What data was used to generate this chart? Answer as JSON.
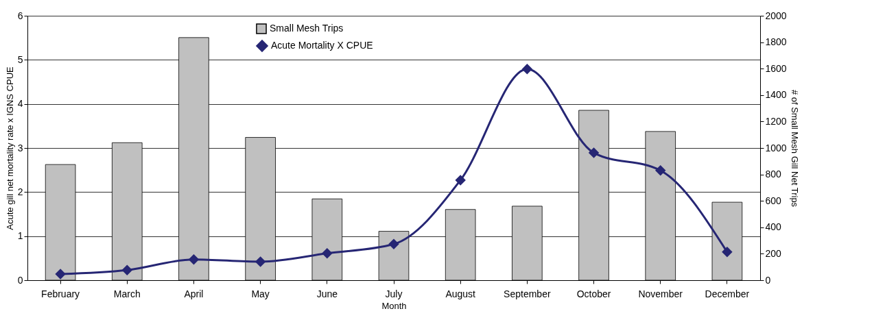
{
  "chart_data": {
    "type": "bar",
    "xlabel": "Month",
    "ylabel": "Acute gill net mortality rate x IGNS CPUE",
    "y2label": "# of Small Mesh Gill Net Trips",
    "categories": [
      "February",
      "March",
      "April",
      "May",
      "June",
      "July",
      "August",
      "September",
      "October",
      "November",
      "December"
    ],
    "series": [
      {
        "name": "Small Mesh Trips",
        "axis": "y2",
        "color": "#c0c0c0",
        "values": [
          875,
          1040,
          1835,
          1080,
          615,
          370,
          535,
          560,
          1285,
          1125,
          590
        ]
      },
      {
        "name": "Acute Mortality X CPUE",
        "type": "line",
        "color": "#262674",
        "marker": "diamond",
        "values": [
          0.14,
          0.23,
          0.47,
          0.42,
          0.61,
          0.82,
          2.27,
          4.79,
          2.89,
          2.49,
          0.64
        ]
      }
    ],
    "ylim": [
      0,
      6
    ],
    "yticks": [
      0,
      1,
      2,
      3,
      4,
      5,
      6
    ],
    "y2lim": [
      0,
      2000
    ],
    "y2ticks": [
      0,
      200,
      400,
      600,
      800,
      1000,
      1200,
      1400,
      1600,
      1800,
      2000
    ],
    "grid": "y",
    "legend": "top"
  }
}
